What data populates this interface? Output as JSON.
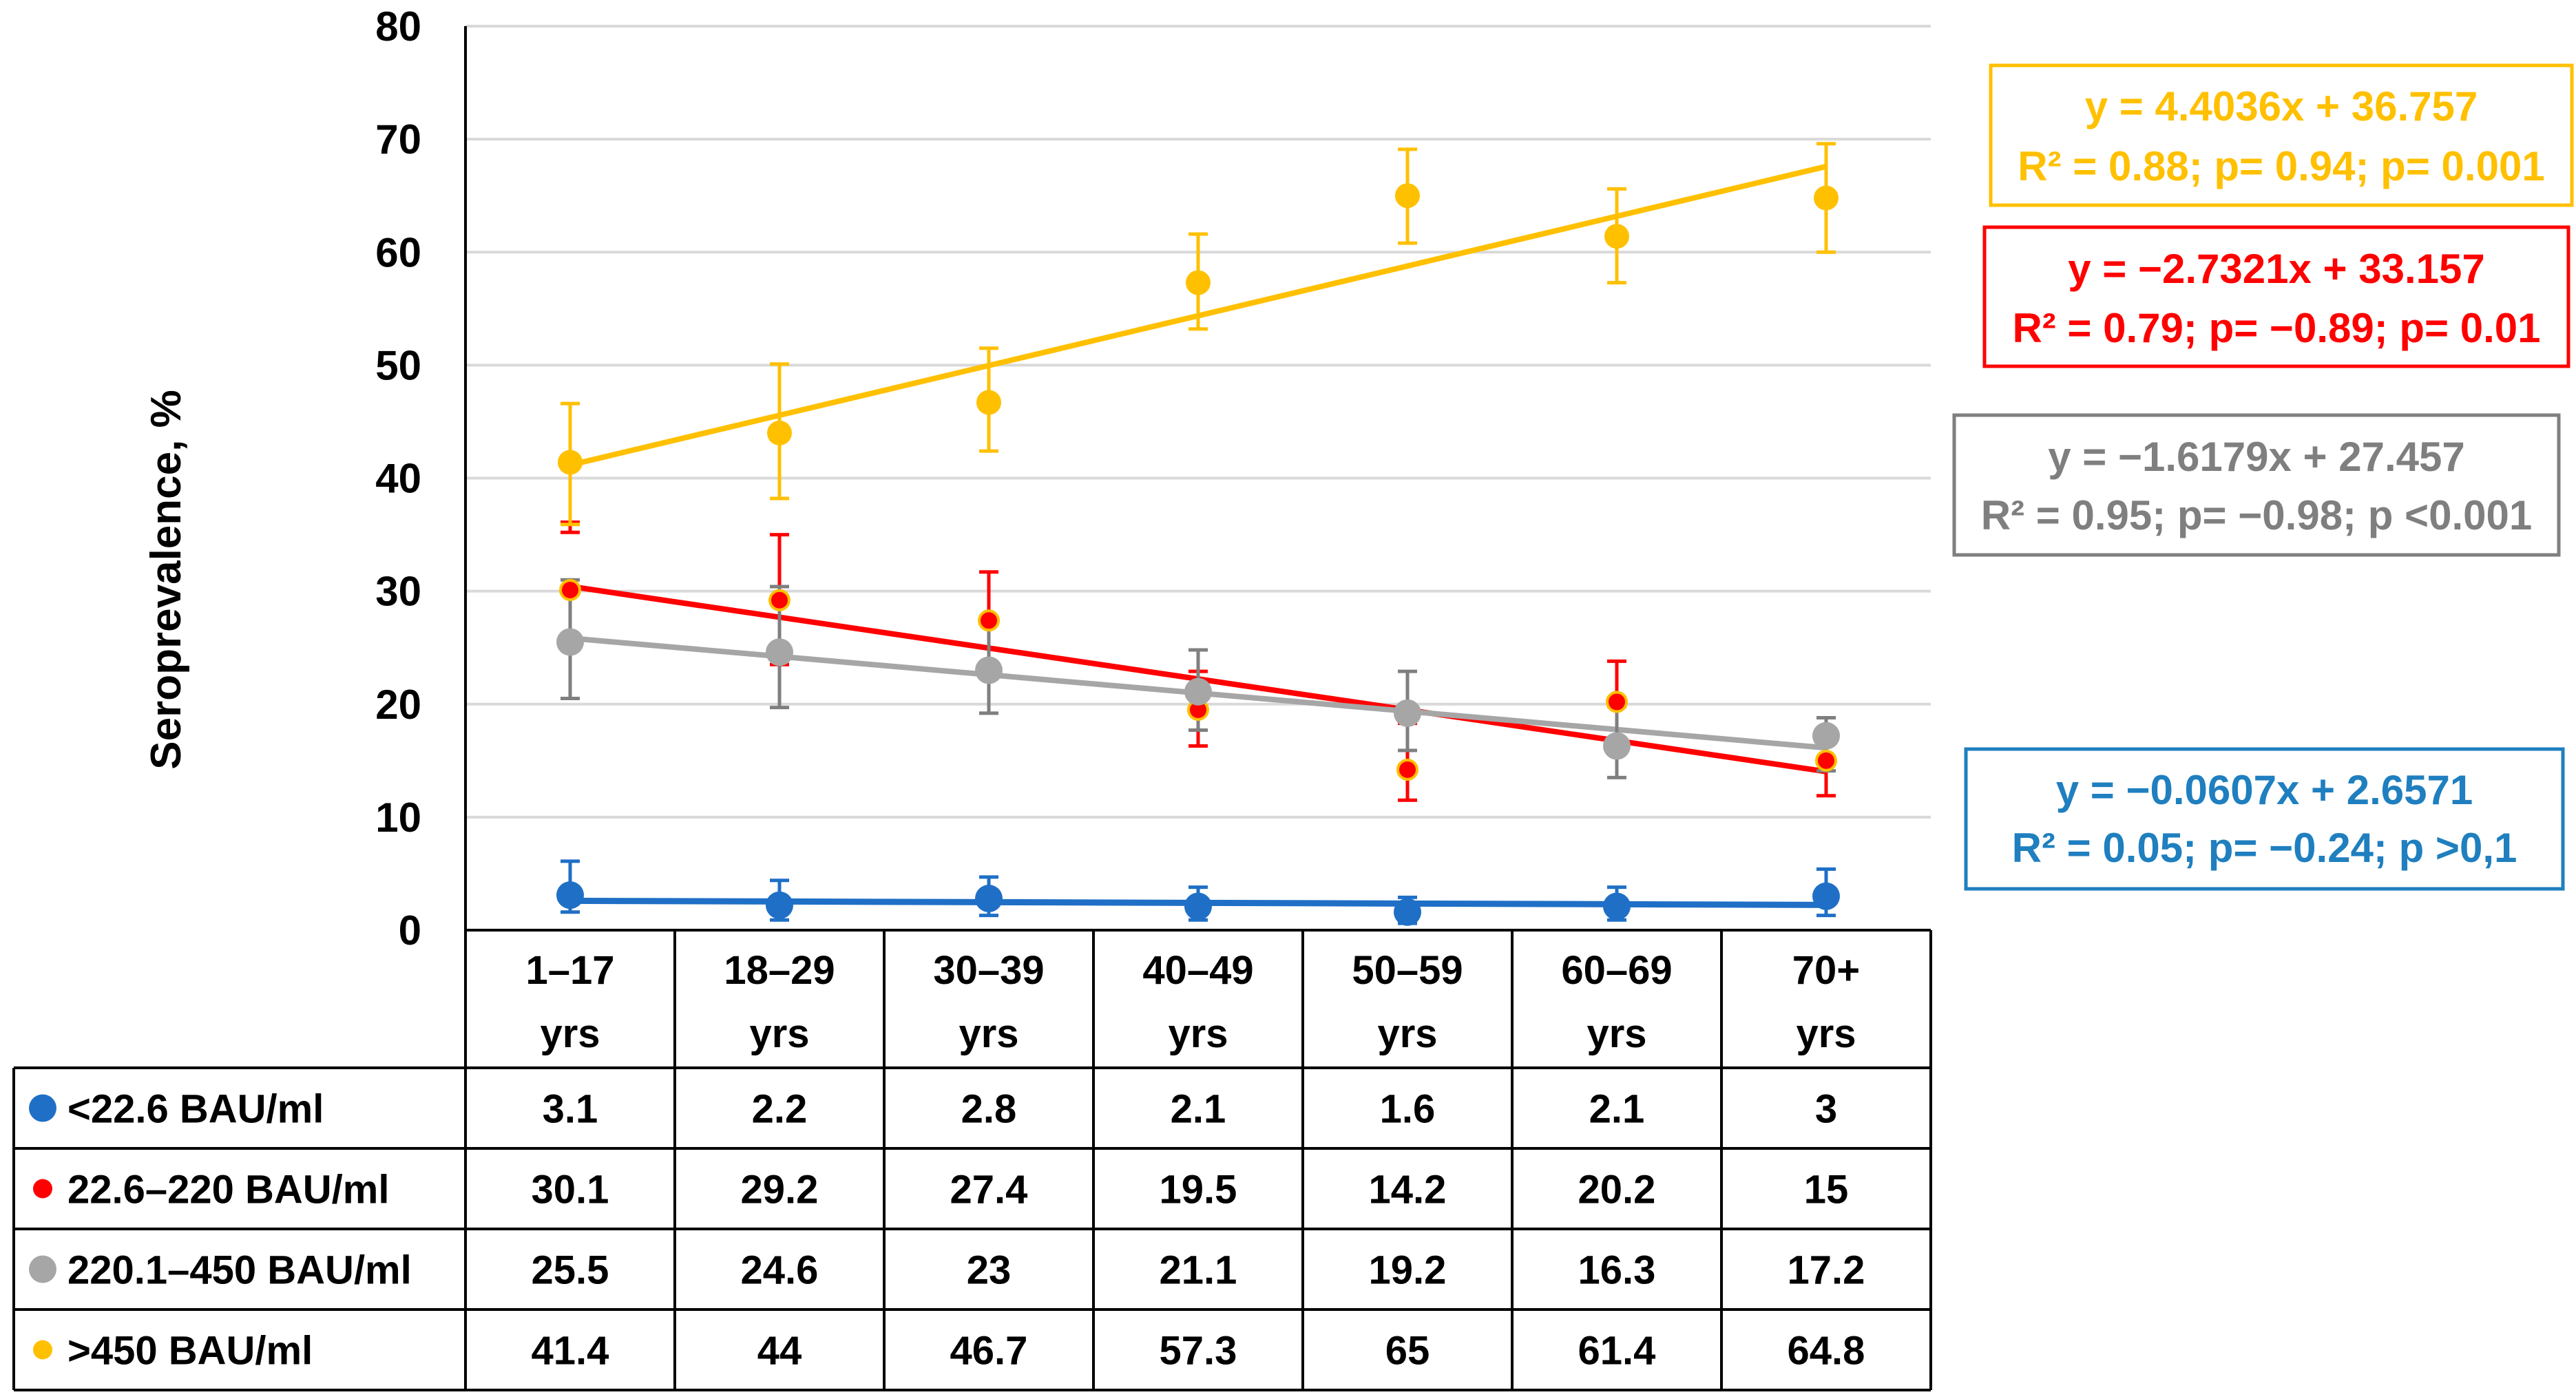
{
  "chart_data": {
    "type": "line",
    "ylabel": "Seroprevalence, %",
    "ylim": [
      0,
      80
    ],
    "yticks": [
      0,
      10,
      20,
      30,
      40,
      50,
      60,
      70,
      80
    ],
    "grid": true,
    "categories": [
      [
        "1–17",
        "yrs"
      ],
      [
        "18–29",
        "yrs"
      ],
      [
        "30–39",
        "yrs"
      ],
      [
        "40–49",
        "yrs"
      ],
      [
        "50–59",
        "yrs"
      ],
      [
        "60–69",
        "yrs"
      ],
      [
        "70+",
        "yrs"
      ]
    ],
    "series": [
      {
        "name": "<22.6  BAU/ml",
        "color": "#1f6fc6",
        "values": [
          3.1,
          2.2,
          2.8,
          2.1,
          1.6,
          2.1,
          3
        ],
        "error_low": [
          1.6,
          0.9,
          1.3,
          0.9,
          0.6,
          0.9,
          1.3
        ],
        "error_high": [
          6.1,
          4.4,
          4.7,
          3.8,
          2.9,
          3.8,
          5.4
        ],
        "trend": {
          "slope": -0.0607,
          "intercept": 2.6571
        },
        "equation": "y = −0.0607x + 2.6571",
        "stats": "R² = 0.05;   p= −0.24;   p >0,1"
      },
      {
        "name": "22.6–220 BAU/ml",
        "color": "#ff0000",
        "values": [
          30.1,
          29.2,
          27.4,
          19.5,
          14.2,
          20.2,
          15
        ],
        "error_low": [
          35.2,
          23.5,
          23.2,
          16.3,
          11.5,
          16.5,
          11.9
        ],
        "error_high": [
          36.1,
          35,
          31.7,
          22.9,
          18.3,
          23.8,
          18.8
        ],
        "trend": {
          "slope": -2.7321,
          "intercept": 33.157
        },
        "equation": "y = −2.7321x + 33.157",
        "stats": "R² = 0.79; p= −0.89; p= 0.01"
      },
      {
        "name": "220.1–450 BAU/ml",
        "color": "#a6a6a6",
        "values": [
          25.5,
          24.6,
          23,
          21.1,
          19.2,
          16.3,
          17.2
        ],
        "error_low": [
          20.5,
          19.7,
          19.2,
          17.7,
          15.9,
          13.5,
          14.1
        ],
        "error_high": [
          31,
          30.4,
          27.4,
          24.8,
          22.9,
          19.8,
          18.8
        ],
        "trend": {
          "slope": -1.6179,
          "intercept": 27.457
        },
        "equation": "y = −1.6179x + 27.457",
        "stats": "R² = 0.95; p= −0.98; p <0.001"
      },
      {
        "name": ">450 BAU/ml",
        "color": "#ffc000",
        "values": [
          41.4,
          44,
          46.7,
          57.3,
          65,
          61.4,
          64.8
        ],
        "error_low": [
          35.9,
          38.2,
          42.4,
          53.2,
          60.8,
          57.3,
          60
        ],
        "error_high": [
          46.6,
          50.1,
          51.5,
          61.6,
          69.1,
          65.6,
          69.6
        ],
        "trend": {
          "slope": 4.4036,
          "intercept": 36.757
        },
        "equation": "y = 4.4036x + 36.757",
        "stats": "R² = 0.88; p= 0.94; p= 0.001"
      }
    ],
    "equation_order": [
      3,
      1,
      2,
      0
    ]
  }
}
